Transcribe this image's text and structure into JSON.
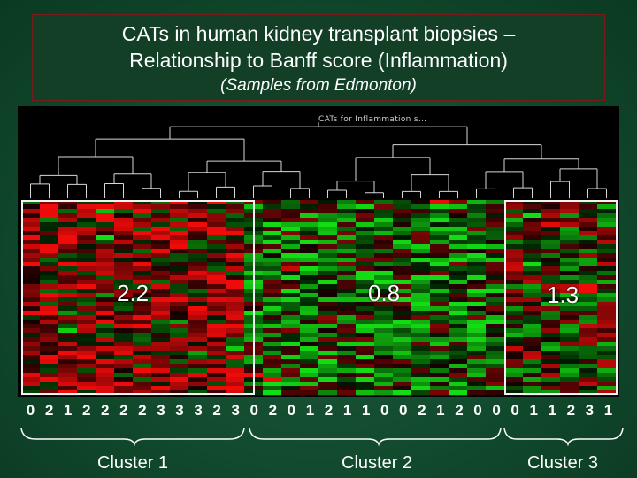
{
  "title": {
    "line1": "CATs in human kidney transplant biopsies –",
    "line2": "Relationship to Banff score (Inflammation)",
    "subtitle": "(Samples from Edmonton)"
  },
  "dendrogram": {
    "title": "CATs for Inflammation s..."
  },
  "clusters": [
    {
      "label": "Cluster 1",
      "mean_score": "2.2"
    },
    {
      "label": "Cluster 2",
      "mean_score": "0.8"
    },
    {
      "label": "Cluster 3",
      "mean_score": "1.3"
    }
  ],
  "banff_scores": [
    "0",
    "2",
    "1",
    "2",
    "2",
    "2",
    "2",
    "3",
    "3",
    "3",
    "2",
    "3",
    "0",
    "2",
    "0",
    "1",
    "2",
    "1",
    "1",
    "0",
    "0",
    "2",
    "1",
    "2",
    "0",
    "0",
    "0",
    "1",
    "1",
    "2",
    "3",
    "1"
  ],
  "colors": {
    "up": "#e01010",
    "down": "#18c018",
    "box": "#f2f2f2",
    "title_border": "#7a1a1a"
  }
}
